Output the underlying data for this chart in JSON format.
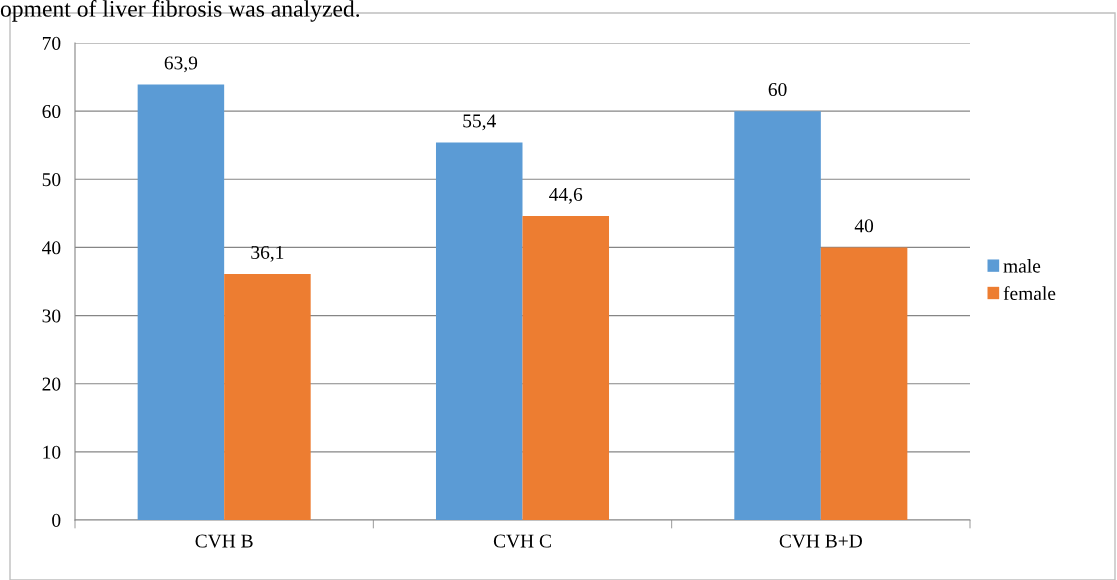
{
  "chart_data": {
    "type": "bar",
    "categories": [
      "CVH B",
      "CVH C",
      "CVH B+D"
    ],
    "series": [
      {
        "name": "male",
        "color": "#5b9bd5",
        "values": [
          63.9,
          55.4,
          60
        ],
        "value_labels": [
          "63,9",
          "55,4",
          "60"
        ]
      },
      {
        "name": "female",
        "color": "#ed7d31",
        "values": [
          36.1,
          44.6,
          40
        ],
        "value_labels": [
          "36,1",
          "44,6",
          "40"
        ]
      }
    ],
    "ylim": [
      0,
      70
    ],
    "yticks": [
      0,
      10,
      20,
      30,
      40,
      50,
      60,
      70
    ],
    "grid": "y",
    "legend": "right",
    "annotations": [
      "opment of liver fibrosis was analyzed."
    ]
  }
}
